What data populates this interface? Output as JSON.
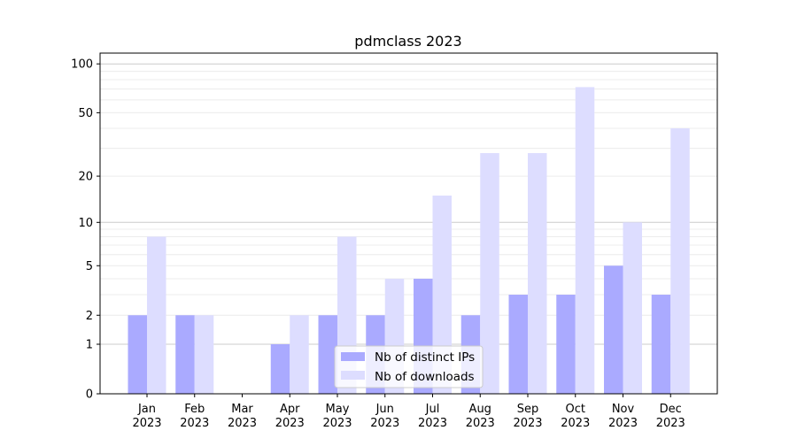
{
  "chart_data": {
    "type": "bar",
    "title": "pdmclass 2023",
    "xlabel": "",
    "ylabel": "",
    "yscale": "log(1+y)",
    "ylim": [
      0,
      110
    ],
    "yticks": [
      0,
      1,
      2,
      5,
      10,
      20,
      50,
      100
    ],
    "categories": [
      "Jan\n2023",
      "Feb\n2023",
      "Mar\n2023",
      "Apr\n2023",
      "May\n2023",
      "Jun\n2023",
      "Jul\n2023",
      "Aug\n2023",
      "Sep\n2023",
      "Oct\n2023",
      "Nov\n2023",
      "Dec\n2023"
    ],
    "series": [
      {
        "name": "Nb of distinct IPs",
        "color": "#aaaaff",
        "values": [
          2,
          2,
          0,
          1,
          2,
          2,
          4,
          2,
          3,
          3,
          5,
          3
        ]
      },
      {
        "name": "Nb of downloads",
        "color": "#ddddff",
        "values": [
          8,
          2,
          0,
          2,
          8,
          4,
          15,
          28,
          28,
          72,
          10,
          40
        ]
      }
    ],
    "grid": true,
    "legend": "bottom-center"
  }
}
